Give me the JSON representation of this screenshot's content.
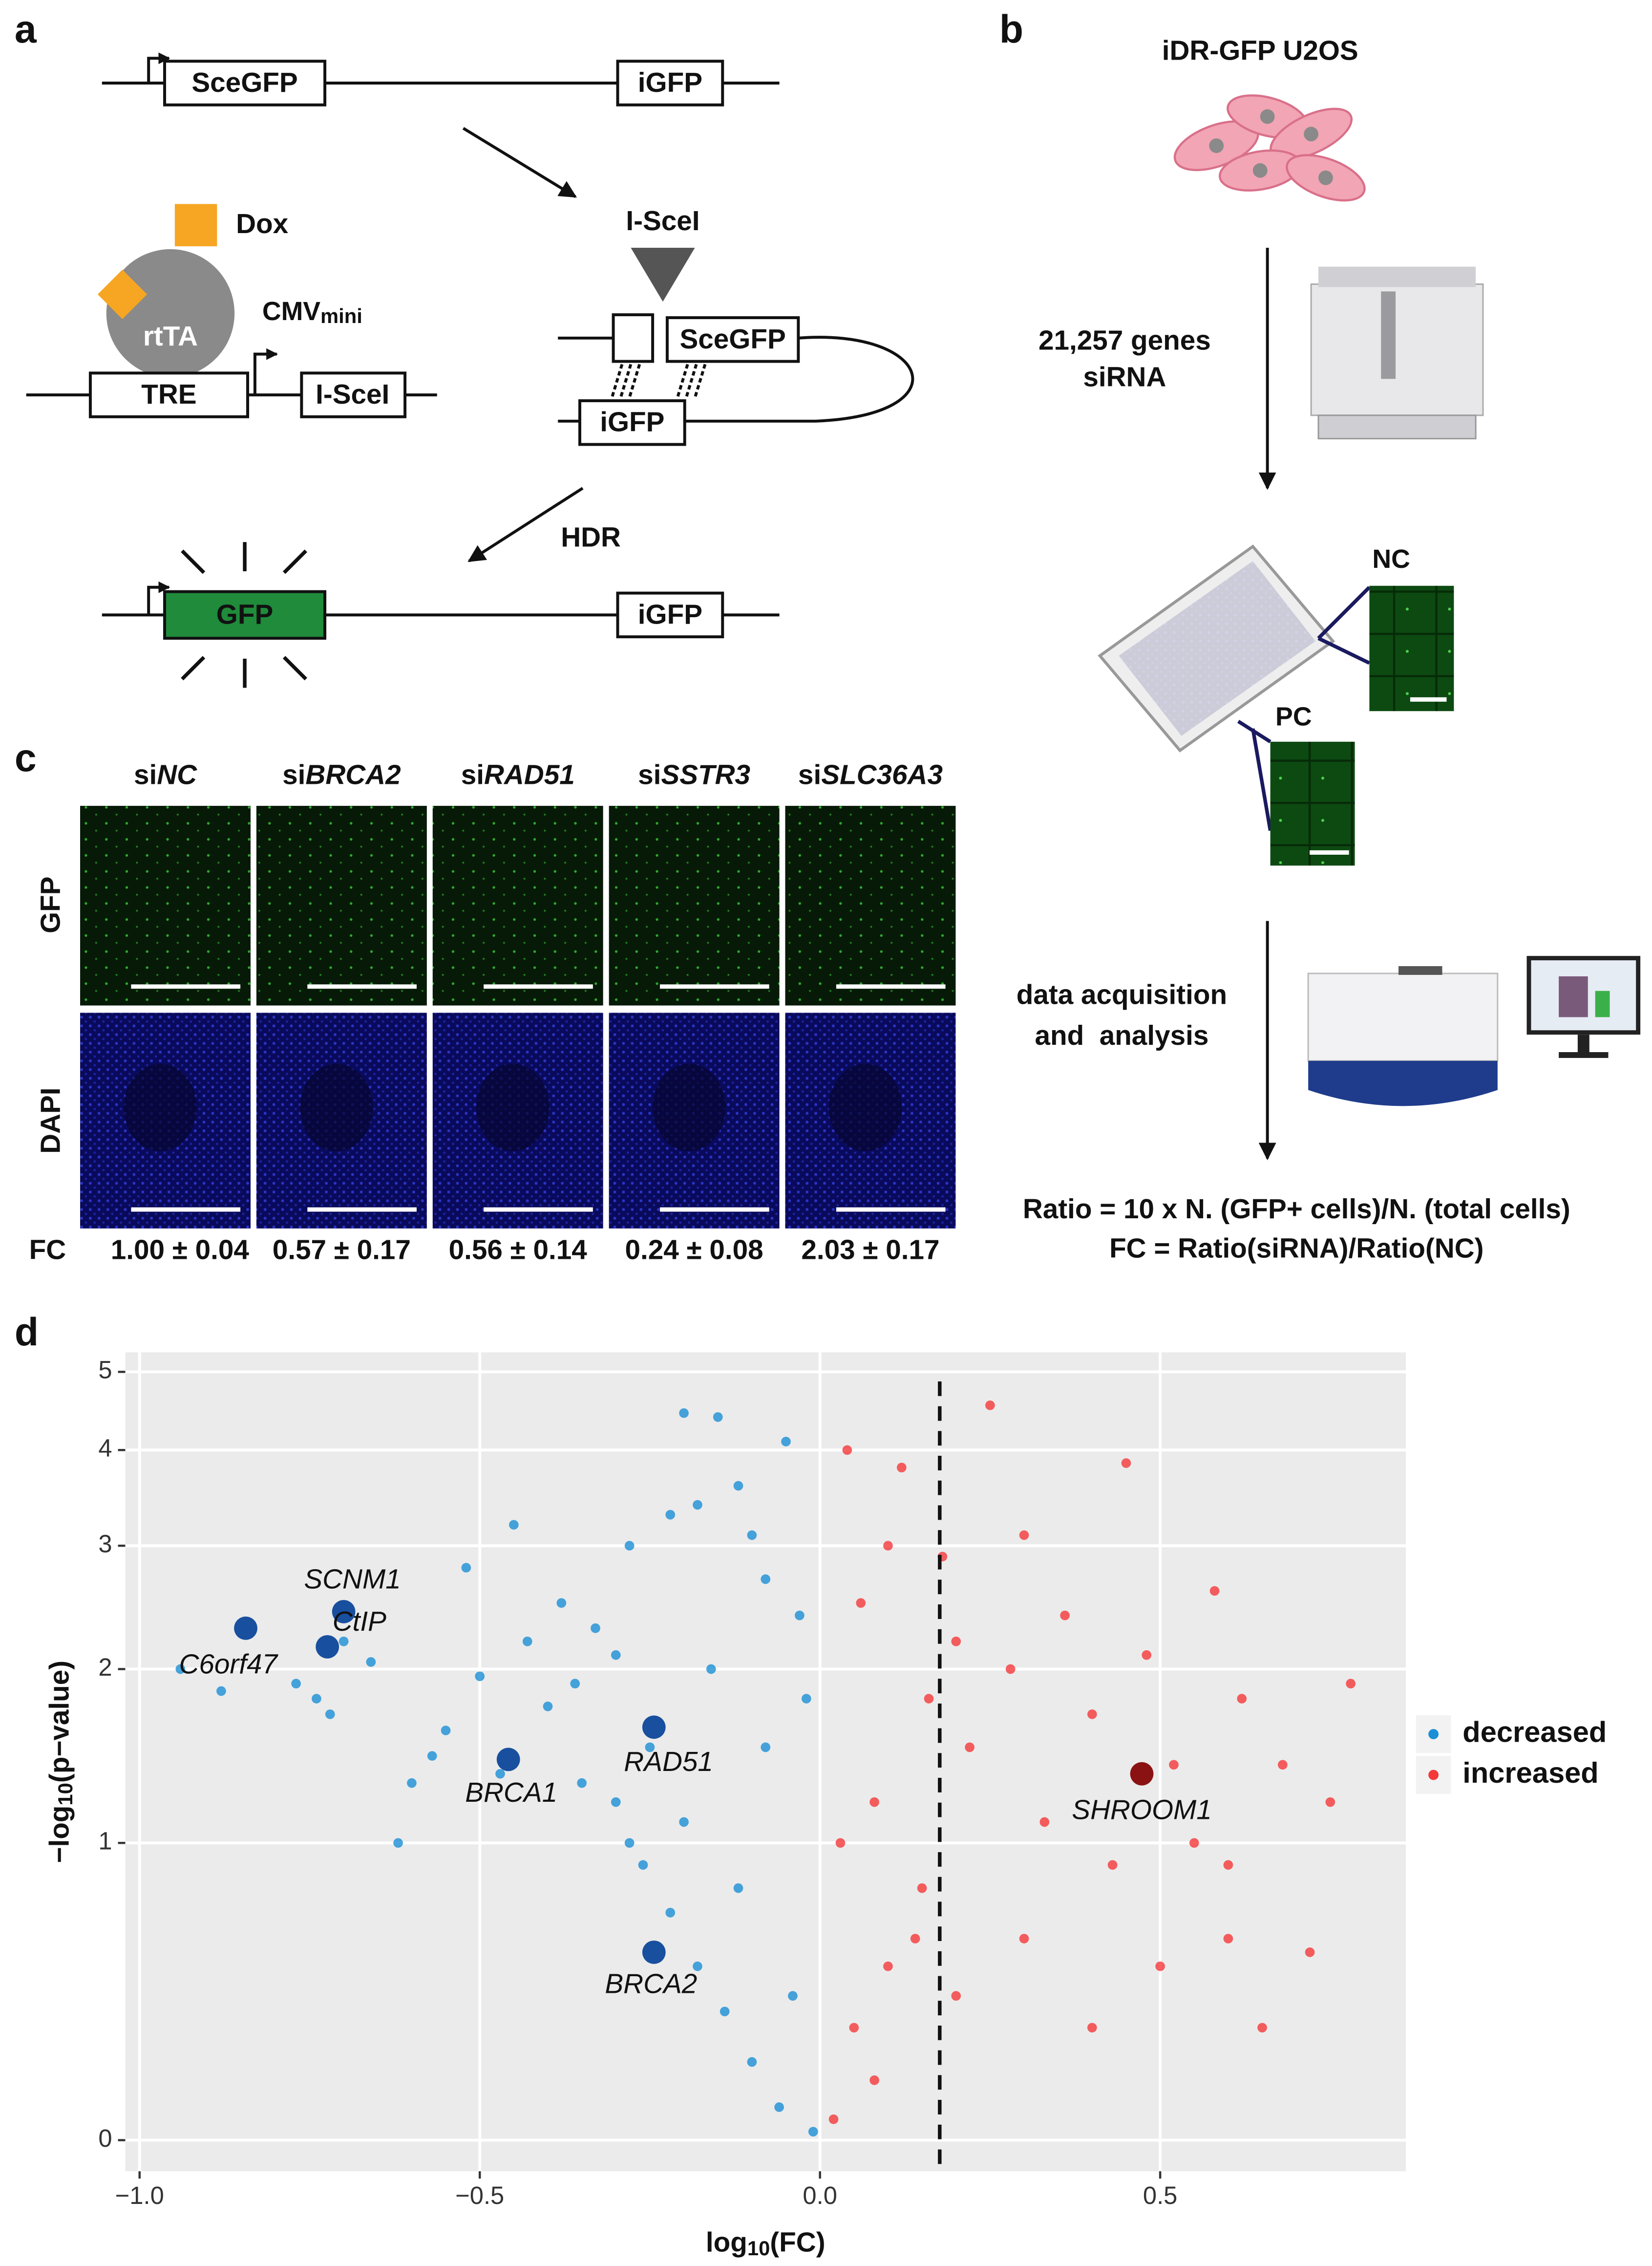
{
  "panel_labels": [
    "a",
    "b",
    "c",
    "d"
  ],
  "panel_a": {
    "top_box1": "SceGFP",
    "top_box2": "iGFP",
    "dox": "Dox",
    "rtta": "rtTA",
    "cmv": "CMV",
    "cmv_sub": "mini",
    "tre": "TRE",
    "isce_box": "I-SceI",
    "isce_label": "I-SceI",
    "mid_box1": "SceGFP",
    "mid_box2": "iGFP",
    "hdr": "HDR",
    "bottom_box1": "GFP",
    "bottom_box2": "iGFP"
  },
  "panel_b": {
    "cells": "iDR-GFP U2OS",
    "genes": "21,257 genes",
    "sirna": "siRNA",
    "nc": "NC",
    "pc": "PC",
    "acq1": "data acquisition",
    "acq2": "and  analysis",
    "ratio": "Ratio = 10 x N. (GFP+ cells)/N. (total cells)",
    "fc": "FC = Ratio(siRNA)/Ratio(NC)"
  },
  "panel_c": {
    "columns": [
      {
        "prefix": "si",
        "gene": "NC"
      },
      {
        "prefix": "si",
        "gene": "BRCA2"
      },
      {
        "prefix": "si",
        "gene": "RAD51"
      },
      {
        "prefix": "si",
        "gene": "SSTR3"
      },
      {
        "prefix": "si",
        "gene": "SLC36A3"
      }
    ],
    "rows": [
      "GFP",
      "DAPI"
    ],
    "fc_label": "FC",
    "fc_values": [
      "1.00 ± 0.04",
      "0.57 ± 0.17",
      "0.56 ± 0.14",
      "0.24 ± 0.08",
      "2.03 ± 0.17"
    ]
  },
  "chart_data": {
    "type": "scatter",
    "xlabel": [
      "log",
      "10",
      "(FC)"
    ],
    "ylabel": [
      "−log",
      "10",
      "(p−value)"
    ],
    "xlim": [
      -1.021,
      0.861
    ],
    "ylim": [
      -0.07,
      5.28
    ],
    "yscale": "log1p",
    "xticks": [
      {
        "value": -1,
        "label": "−1.0"
      },
      {
        "value": -0.5,
        "label": "−0.5"
      },
      {
        "value": 0,
        "label": "0.0"
      },
      0.5
    ],
    "yticks": [
      0,
      1,
      2,
      3,
      4,
      5
    ],
    "grid": true,
    "background": "#ebebeb",
    "threshold": 0.176,
    "legend": "right",
    "series": [
      {
        "name": "decreased",
        "color": "#1a8fd6",
        "x": [
          -0.94,
          -0.88,
          -0.77,
          -0.74,
          -0.72,
          -0.7,
          -0.66,
          -0.62,
          -0.6,
          -0.57,
          -0.55,
          -0.52,
          -0.5,
          -0.47,
          -0.45,
          -0.43,
          -0.4,
          -0.38,
          -0.36,
          -0.33,
          -0.3,
          -0.28,
          -0.25,
          -0.22,
          -0.2,
          -0.18,
          -0.15,
          -0.12,
          -0.1,
          -0.08,
          -0.05,
          -0.03,
          -0.02,
          -0.3,
          -0.26,
          -0.22,
          -0.18,
          -0.14,
          -0.1,
          -0.06,
          -0.35,
          -0.28,
          -0.2,
          -0.12,
          -0.04,
          -0.16,
          -0.08,
          -0.01
        ],
        "values": [
          2.0,
          1.85,
          1.9,
          1.8,
          1.7,
          2.2,
          2.05,
          1.0,
          1.3,
          1.45,
          1.6,
          2.8,
          1.95,
          1.35,
          3.2,
          2.2,
          1.75,
          2.5,
          1.9,
          2.3,
          2.1,
          3.0,
          1.5,
          3.3,
          4.45,
          3.4,
          4.4,
          3.6,
          3.1,
          2.7,
          4.1,
          2.4,
          1.8,
          1.2,
          0.9,
          0.7,
          0.5,
          0.35,
          0.2,
          0.08,
          1.3,
          1.0,
          1.1,
          0.8,
          0.4,
          2.0,
          1.5,
          0.02
        ]
      },
      {
        "name": "increased",
        "color": "#f5383a",
        "x": [
          0.02,
          0.04,
          0.06,
          0.08,
          0.1,
          0.12,
          0.14,
          0.16,
          0.18,
          0.2,
          0.22,
          0.25,
          0.28,
          0.3,
          0.33,
          0.36,
          0.4,
          0.43,
          0.45,
          0.48,
          0.52,
          0.55,
          0.58,
          0.6,
          0.62,
          0.65,
          0.68,
          0.72,
          0.75,
          0.78,
          0.05,
          0.1,
          0.15,
          0.2,
          0.3,
          0.4,
          0.5,
          0.6,
          0.03,
          0.08
        ],
        "values": [
          0.05,
          4.0,
          2.5,
          1.2,
          3.0,
          3.8,
          0.6,
          1.8,
          2.9,
          2.2,
          1.5,
          4.55,
          2.0,
          3.1,
          1.1,
          2.4,
          1.7,
          0.9,
          3.85,
          2.1,
          1.4,
          1.0,
          2.6,
          0.6,
          1.8,
          0.3,
          1.4,
          0.55,
          1.2,
          1.9,
          0.3,
          0.5,
          0.8,
          0.4,
          0.6,
          0.3,
          0.5,
          0.9,
          1.0,
          0.15
        ]
      }
    ],
    "annotations": [
      {
        "text": "C6orf47",
        "x": -0.844,
        "y": 2.3,
        "color": "#184f9e"
      },
      {
        "text": "SCNM1",
        "x": -0.7,
        "y": 2.43,
        "color": "#184f9e"
      },
      {
        "text": "CtIP",
        "x": -0.724,
        "y": 2.16,
        "color": "#184f9e"
      },
      {
        "text": "BRCA1",
        "x": -0.458,
        "y": 1.43,
        "color": "#184f9e"
      },
      {
        "text": "RAD51",
        "x": -0.244,
        "y": 1.62,
        "color": "#184f9e"
      },
      {
        "text": "BRCA2",
        "x": -0.244,
        "y": 0.55,
        "color": "#184f9e"
      },
      {
        "text": "SHROOM1",
        "x": 0.473,
        "y": 1.35,
        "color": "#8b1212"
      }
    ]
  }
}
